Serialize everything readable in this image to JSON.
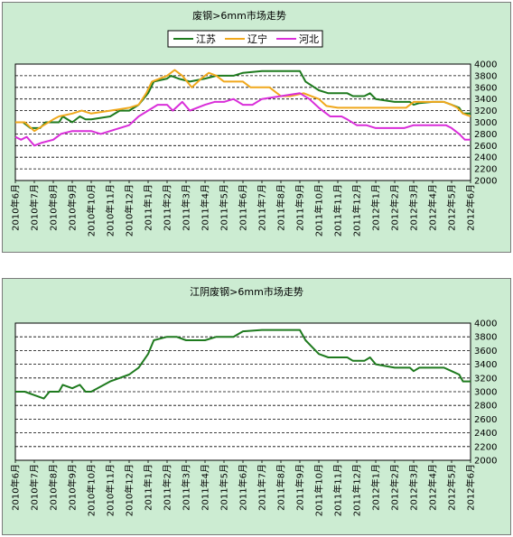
{
  "chart_data": [
    {
      "type": "line",
      "title": "废钢>6mm市场走势",
      "categories": [
        "2010年6月",
        "2010年7月",
        "2010年8月",
        "2010年9月",
        "2010年10月",
        "2010年11月",
        "2010年12月",
        "2011年1月",
        "2011年2月",
        "2011年3月",
        "2011年4月",
        "2011年5月",
        "2011年6月",
        "2011年7月",
        "2011年8月",
        "2011年9月",
        "2011年10月",
        "2011年11月",
        "2011年12月",
        "2012年1月",
        "2012年2月",
        "2012年3月",
        "2012年4月",
        "2012年5月",
        "2012年6月"
      ],
      "ylim": [
        2000,
        4000
      ],
      "yticks": [
        2000,
        2200,
        2400,
        2600,
        2800,
        3000,
        3200,
        3400,
        3600,
        3800,
        4000
      ],
      "grid": true,
      "legend": "top",
      "series": [
        {
          "name": "江苏",
          "color": "#1e7a1e",
          "points": [
            [
              0,
              3000
            ],
            [
              0.4,
              3000
            ],
            [
              0.8,
              2900
            ],
            [
              1.3,
              2900
            ],
            [
              1.6,
              3000
            ],
            [
              2.3,
              3000
            ],
            [
              2.5,
              3100
            ],
            [
              3,
              3000
            ],
            [
              3.4,
              3100
            ],
            [
              3.7,
              3050
            ],
            [
              4,
              3050
            ],
            [
              5,
              3100
            ],
            [
              5.5,
              3200
            ],
            [
              6,
              3200
            ],
            [
              6.5,
              3300
            ],
            [
              7,
              3500
            ],
            [
              7.3,
              3700
            ],
            [
              8,
              3750
            ],
            [
              8.2,
              3800
            ],
            [
              8.6,
              3750
            ],
            [
              9.2,
              3700
            ],
            [
              10,
              3750
            ],
            [
              10.6,
              3800
            ],
            [
              11.5,
              3800
            ],
            [
              12,
              3850
            ],
            [
              13,
              3880
            ],
            [
              14,
              3880
            ],
            [
              15,
              3880
            ],
            [
              15.3,
              3700
            ],
            [
              16,
              3550
            ],
            [
              16.5,
              3500
            ],
            [
              17.5,
              3500
            ],
            [
              17.8,
              3450
            ],
            [
              18.4,
              3450
            ],
            [
              18.7,
              3500
            ],
            [
              19,
              3400
            ],
            [
              20,
              3350
            ],
            [
              20.8,
              3350
            ],
            [
              21,
              3300
            ],
            [
              21.3,
              3330
            ],
            [
              22,
              3350
            ],
            [
              22.6,
              3350
            ],
            [
              23,
              3300
            ],
            [
              23.4,
              3250
            ],
            [
              23.6,
              3150
            ],
            [
              24,
              3150
            ]
          ]
        },
        {
          "name": "辽宁",
          "color": "#f0a81c",
          "points": [
            [
              0,
              3000
            ],
            [
              0.5,
              3000
            ],
            [
              1,
              2850
            ],
            [
              1.5,
              2950
            ],
            [
              2,
              3050
            ],
            [
              2.3,
              3100
            ],
            [
              3,
              3150
            ],
            [
              3.5,
              3200
            ],
            [
              4,
              3150
            ],
            [
              5,
              3200
            ],
            [
              6,
              3250
            ],
            [
              6.5,
              3300
            ],
            [
              6.9,
              3500
            ],
            [
              7.2,
              3700
            ],
            [
              8,
              3800
            ],
            [
              8.4,
              3900
            ],
            [
              8.8,
              3800
            ],
            [
              9.3,
              3600
            ],
            [
              9.8,
              3750
            ],
            [
              10.2,
              3850
            ],
            [
              10.6,
              3800
            ],
            [
              11,
              3700
            ],
            [
              12,
              3700
            ],
            [
              12.4,
              3600
            ],
            [
              13.4,
              3600
            ],
            [
              14,
              3450
            ],
            [
              14.5,
              3450
            ],
            [
              15.2,
              3500
            ],
            [
              16,
              3400
            ],
            [
              16.4,
              3280
            ],
            [
              17,
              3250
            ],
            [
              18,
              3250
            ],
            [
              20,
              3250
            ],
            [
              20.6,
              3250
            ],
            [
              21,
              3350
            ],
            [
              22,
              3350
            ],
            [
              22.6,
              3350
            ],
            [
              23,
              3300
            ],
            [
              23.3,
              3250
            ],
            [
              23.6,
              3150
            ],
            [
              24,
              3100
            ]
          ]
        },
        {
          "name": "河北",
          "color": "#d92ed9",
          "points": [
            [
              0,
              2750
            ],
            [
              0.3,
              2700
            ],
            [
              0.6,
              2750
            ],
            [
              1,
              2600
            ],
            [
              1.4,
              2650
            ],
            [
              2,
              2700
            ],
            [
              2.4,
              2800
            ],
            [
              3,
              2850
            ],
            [
              4,
              2850
            ],
            [
              4.5,
              2800
            ],
            [
              5,
              2850
            ],
            [
              5.5,
              2900
            ],
            [
              6,
              2950
            ],
            [
              6.5,
              3100
            ],
            [
              7.5,
              3300
            ],
            [
              8,
              3300
            ],
            [
              8.3,
              3200
            ],
            [
              8.8,
              3350
            ],
            [
              9.2,
              3200
            ],
            [
              10,
              3300
            ],
            [
              10.5,
              3350
            ],
            [
              11,
              3350
            ],
            [
              11.5,
              3400
            ],
            [
              12,
              3300
            ],
            [
              12.5,
              3300
            ],
            [
              13,
              3400
            ],
            [
              14,
              3450
            ],
            [
              15,
              3500
            ],
            [
              15.5,
              3400
            ],
            [
              16,
              3250
            ],
            [
              16.6,
              3100
            ],
            [
              17.2,
              3100
            ],
            [
              17.5,
              3050
            ],
            [
              18,
              2950
            ],
            [
              18.5,
              2950
            ],
            [
              19,
              2900
            ],
            [
              20,
              2900
            ],
            [
              20.5,
              2900
            ],
            [
              21,
              2950
            ],
            [
              21.5,
              2950
            ],
            [
              22,
              2950
            ],
            [
              22.7,
              2950
            ],
            [
              23,
              2900
            ],
            [
              23.4,
              2800
            ],
            [
              23.7,
              2700
            ],
            [
              24,
              2700
            ]
          ]
        }
      ]
    },
    {
      "type": "line",
      "title": "江阴废钢>6mm市场走势",
      "categories": [
        "2010年6月",
        "2010年7月",
        "2010年8月",
        "2010年9月",
        "2010年10月",
        "2010年11月",
        "2010年12月",
        "2011年1月",
        "2011年2月",
        "2011年3月",
        "2011年4月",
        "2011年5月",
        "2011年6月",
        "2011年7月",
        "2011年8月",
        "2011年9月",
        "2011年10月",
        "2011年11月",
        "2011年12月",
        "2012年1月",
        "2012年2月",
        "2012年3月",
        "2012年4月",
        "2012年5月",
        "2012年6月"
      ],
      "ylim": [
        2000,
        4000
      ],
      "yticks": [
        2000,
        2200,
        2400,
        2600,
        2800,
        3000,
        3200,
        3400,
        3600,
        3800,
        4000
      ],
      "grid": true,
      "series": [
        {
          "color": "#1e7a1e",
          "points": [
            [
              0,
              3000
            ],
            [
              0.5,
              3000
            ],
            [
              1,
              2950
            ],
            [
              1.5,
              2900
            ],
            [
              1.8,
              3000
            ],
            [
              2.3,
              3000
            ],
            [
              2.5,
              3100
            ],
            [
              3,
              3050
            ],
            [
              3.4,
              3100
            ],
            [
              3.7,
              3000
            ],
            [
              4,
              3000
            ],
            [
              5,
              3150
            ],
            [
              5.5,
              3200
            ],
            [
              6,
              3250
            ],
            [
              6.5,
              3350
            ],
            [
              7,
              3550
            ],
            [
              7.3,
              3750
            ],
            [
              8,
              3800
            ],
            [
              8.5,
              3800
            ],
            [
              9,
              3750
            ],
            [
              10,
              3750
            ],
            [
              10.6,
              3800
            ],
            [
              11.5,
              3800
            ],
            [
              12,
              3880
            ],
            [
              13,
              3900
            ],
            [
              14,
              3900
            ],
            [
              15,
              3900
            ],
            [
              15.3,
              3750
            ],
            [
              16,
              3550
            ],
            [
              16.5,
              3500
            ],
            [
              17.5,
              3500
            ],
            [
              17.8,
              3450
            ],
            [
              18.4,
              3450
            ],
            [
              18.7,
              3500
            ],
            [
              19,
              3400
            ],
            [
              20,
              3350
            ],
            [
              20.8,
              3350
            ],
            [
              21,
              3300
            ],
            [
              21.3,
              3350
            ],
            [
              22,
              3350
            ],
            [
              22.6,
              3350
            ],
            [
              23,
              3300
            ],
            [
              23.4,
              3250
            ],
            [
              23.6,
              3150
            ],
            [
              24,
              3150
            ]
          ]
        }
      ]
    }
  ]
}
